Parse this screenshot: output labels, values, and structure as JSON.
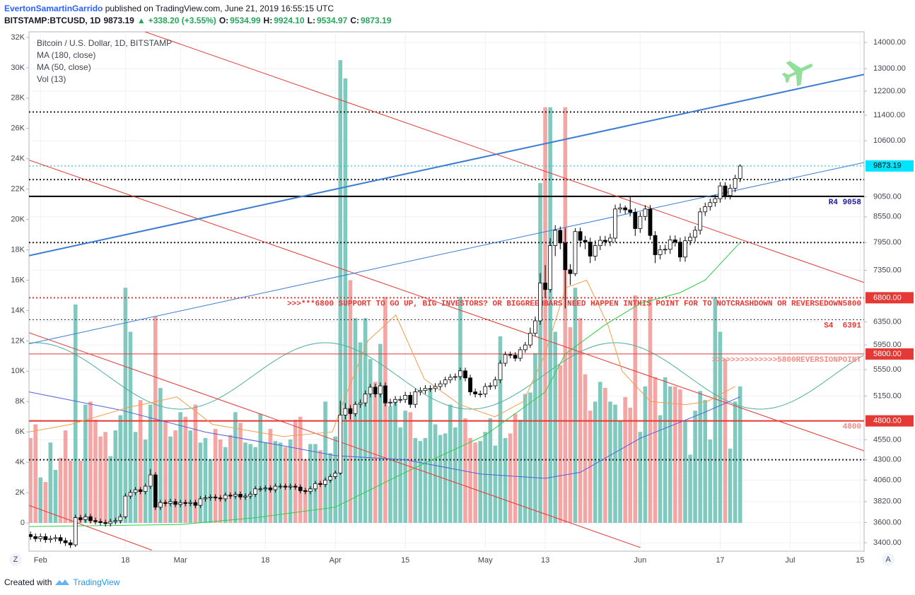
{
  "header": {
    "author": "EvertonSamartinGarrido",
    "published": " published on TradingView.com, June 21, 2019 16:55:15 UTC",
    "symbol": "BITSTAMP:BTCUSD, 1D",
    "last": "9873.19",
    "arrow": "▲",
    "change": "+338.20 (+3.55%)",
    "ohlc": [
      {
        "label": "O:",
        "value": "9534.99"
      },
      {
        "label": "H:",
        "value": "9924.10"
      },
      {
        "label": "L:",
        "value": "9534.97"
      },
      {
        "label": "C:",
        "value": "9873.19"
      }
    ]
  },
  "chart_data": {
    "type": "candlestick",
    "title": "Bitcoin / U.S. Dollar, 1D, BITSTAMP",
    "grid": true,
    "y2log": true,
    "up_color": "#ffffff",
    "down_color": "#000000",
    "volume_up_color": "#80c9bf",
    "volume_down_color": "#f4a6a4",
    "xlim": [
      29.7,
      196.8
    ],
    "xticks": [
      {
        "value": 32,
        "label": "Feb"
      },
      {
        "value": 49,
        "label": "18"
      },
      {
        "value": 60,
        "label": "Mar"
      },
      {
        "value": 77,
        "label": "18"
      },
      {
        "value": 91,
        "label": "Apr"
      },
      {
        "value": 105,
        "label": "15"
      },
      {
        "value": 121,
        "label": "May"
      },
      {
        "value": 133,
        "label": "13"
      },
      {
        "value": 152,
        "label": "Jun"
      },
      {
        "value": 168,
        "label": "17"
      },
      {
        "value": 182,
        "label": "Jul"
      },
      {
        "value": 196,
        "label": "15"
      }
    ],
    "ylim": [
      -1860,
      32370
    ],
    "yticks": [
      0,
      {
        "value": 2000,
        "label": "2K"
      },
      {
        "value": 4000,
        "label": "4K"
      },
      {
        "value": 6000,
        "label": "6K"
      },
      {
        "value": 8000,
        "label": "8K"
      },
      {
        "value": 10000,
        "label": "10K"
      },
      {
        "value": 12000,
        "label": "12K"
      },
      {
        "value": 14000,
        "label": "14K"
      },
      {
        "value": 16000,
        "label": "16K"
      },
      {
        "value": 18000,
        "label": "18K"
      },
      {
        "value": 20000,
        "label": "20K"
      },
      {
        "value": 22000,
        "label": "22K"
      },
      {
        "value": 24000,
        "label": "24K"
      },
      {
        "value": 26000,
        "label": "26K"
      },
      {
        "value": 28000,
        "label": "28K"
      },
      {
        "value": 30000,
        "label": "30K"
      },
      {
        "value": 32000,
        "label": "32K"
      }
    ],
    "y2lim": [
      3320,
      14430
    ],
    "y2ticks": [
      {
        "value": 14000,
        "label": "14000.00"
      },
      {
        "value": 13000,
        "label": "13000.00"
      },
      {
        "value": 12200,
        "label": "12200.00"
      },
      {
        "value": 11400,
        "label": "11400.00"
      },
      {
        "value": 10600,
        "label": "10600.00"
      },
      {
        "value": 9050,
        "label": "9050.00"
      },
      {
        "value": 8550,
        "label": "8550.00"
      },
      {
        "value": 7950,
        "label": "7950.00"
      },
      {
        "value": 7350,
        "label": "7350.00"
      },
      {
        "value": 6350,
        "label": "6350.00"
      },
      {
        "value": 5950,
        "label": "5950.00"
      },
      {
        "value": 5550,
        "label": "5550.00"
      },
      {
        "value": 5150,
        "label": "5150.00"
      },
      {
        "value": 4550,
        "label": "4550.00"
      },
      {
        "value": 4300,
        "label": "4300.00"
      },
      {
        "value": 4060,
        "label": "4060.00"
      },
      {
        "value": 3820,
        "label": "3820.00"
      },
      {
        "value": 3600,
        "label": "3600.00"
      },
      {
        "value": 3400,
        "label": "3400.00"
      }
    ],
    "x": [
      30,
      31,
      32,
      33,
      34,
      35,
      36,
      37,
      38,
      39,
      40,
      41,
      42,
      43,
      44,
      45,
      46,
      47,
      48,
      49,
      50,
      51,
      52,
      53,
      54,
      55,
      56,
      57,
      58,
      59,
      60,
      61,
      62,
      63,
      64,
      65,
      66,
      67,
      68,
      69,
      70,
      71,
      72,
      73,
      74,
      75,
      76,
      77,
      78,
      79,
      80,
      81,
      82,
      83,
      84,
      85,
      86,
      87,
      88,
      89,
      90,
      91,
      92,
      93,
      94,
      95,
      96,
      97,
      98,
      99,
      100,
      101,
      102,
      103,
      104,
      105,
      106,
      107,
      108,
      109,
      110,
      111,
      112,
      113,
      114,
      115,
      116,
      117,
      118,
      119,
      120,
      121,
      122,
      123,
      124,
      125,
      126,
      127,
      128,
      129,
      130,
      131,
      132,
      133,
      134,
      135,
      136,
      137,
      138,
      139,
      140,
      141,
      142,
      143,
      144,
      145,
      146,
      147,
      148,
      149,
      150,
      151,
      152,
      153,
      154,
      155,
      156,
      157,
      158,
      159,
      160,
      161,
      162,
      163,
      164,
      165,
      166,
      167,
      168,
      169,
      170,
      171,
      172
    ],
    "open": [
      3480,
      3460,
      3440,
      3460,
      3430,
      3440,
      3450,
      3420,
      3400,
      3380,
      3650,
      3630,
      3660,
      3620,
      3610,
      3600,
      3590,
      3610,
      3620,
      3660,
      3880,
      3920,
      3950,
      3930,
      3990,
      4120,
      3760,
      3810,
      3800,
      3820,
      3790,
      3810,
      3800,
      3810,
      3780,
      3850,
      3860,
      3870,
      3860,
      3850,
      3890,
      3880,
      3900,
      3870,
      3880,
      3900,
      3960,
      3960,
      3970,
      3950,
      3990,
      3990,
      3980,
      3990,
      3980,
      3940,
      3930,
      3960,
      4020,
      4010,
      4060,
      4100,
      4140,
      4880,
      4970,
      4900,
      5030,
      5050,
      5180,
      5280,
      5180,
      5300,
      5050,
      5060,
      5100,
      5100,
      5160,
      5030,
      5210,
      5230,
      5260,
      5260,
      5290,
      5330,
      5390,
      5430,
      5440,
      5530,
      5420,
      5210,
      5180,
      5180,
      5290,
      5300,
      5390,
      5650,
      5790,
      5780,
      5730,
      5870,
      5950,
      6150,
      6370,
      7090,
      6960,
      7880,
      8230,
      7940,
      7360,
      7280,
      8200,
      8000,
      7960,
      7650,
      7880,
      8000,
      7970,
      8050,
      8740,
      8770,
      8720,
      8660,
      8270,
      8560,
      8740,
      8110,
      7680,
      7790,
      7800,
      8010,
      7960,
      7630,
      7990,
      8070,
      8230,
      8670,
      8800,
      8900,
      9000,
      9330,
      9080,
      9270,
      9530
    ],
    "high": [
      3510,
      3490,
      3490,
      3490,
      3470,
      3480,
      3480,
      3450,
      3430,
      3680,
      3680,
      3690,
      3690,
      3650,
      3640,
      3630,
      3640,
      3650,
      3690,
      3910,
      3950,
      3980,
      3980,
      4020,
      4190,
      4150,
      3840,
      3840,
      3850,
      3850,
      3840,
      3840,
      3840,
      3840,
      3880,
      3890,
      3900,
      3900,
      3890,
      3920,
      3920,
      3930,
      3930,
      3910,
      3930,
      3990,
      3990,
      4000,
      4000,
      4020,
      4020,
      4020,
      4020,
      4020,
      4010,
      3970,
      3990,
      4050,
      4050,
      4090,
      4130,
      4170,
      5080,
      5050,
      5020,
      5070,
      5100,
      5230,
      5330,
      5330,
      5350,
      5350,
      5110,
      5150,
      5150,
      5210,
      5210,
      5260,
      5280,
      5310,
      5310,
      5340,
      5380,
      5440,
      5480,
      5490,
      5580,
      5580,
      5470,
      5260,
      5230,
      5340,
      5350,
      5440,
      5700,
      5840,
      5840,
      5830,
      5920,
      6000,
      6250,
      6450,
      7290,
      7460,
      8050,
      8350,
      8320,
      8280,
      7480,
      8280,
      8290,
      8100,
      8060,
      8000,
      8100,
      8100,
      8150,
      8850,
      8880,
      8830,
      9060,
      8760,
      8660,
      8840,
      8840,
      8210,
      7890,
      7900,
      8110,
      8110,
      8060,
      8090,
      8170,
      8330,
      8770,
      8900,
      9000,
      9100,
      9430,
      9430,
      9370,
      9630,
      9920
    ],
    "low": [
      3430,
      3410,
      3410,
      3400,
      3400,
      3410,
      3390,
      3370,
      3350,
      3360,
      3600,
      3600,
      3590,
      3580,
      3570,
      3560,
      3560,
      3580,
      3590,
      3640,
      3850,
      3890,
      3900,
      3900,
      3960,
      3730,
      3730,
      3770,
      3770,
      3760,
      3760,
      3770,
      3770,
      3750,
      3750,
      3820,
      3830,
      3830,
      3820,
      3820,
      3850,
      3850,
      3840,
      3840,
      3850,
      3870,
      3930,
      3930,
      3920,
      3920,
      3960,
      3950,
      3950,
      3950,
      3910,
      3900,
      3900,
      3930,
      3980,
      3980,
      4030,
      4070,
      4120,
      4820,
      4820,
      4860,
      4980,
      5000,
      5130,
      5130,
      5130,
      5000,
      5000,
      5010,
      5050,
      5050,
      4980,
      4980,
      5160,
      5180,
      5210,
      5210,
      5240,
      5280,
      5340,
      5380,
      5390,
      5370,
      5160,
      5130,
      5130,
      5130,
      5240,
      5250,
      5340,
      5600,
      5730,
      5680,
      5680,
      5820,
      5900,
      6100,
      6300,
      6800,
      6900,
      7650,
      7800,
      6600,
      7050,
      7230,
      7850,
      7800,
      7500,
      7550,
      7780,
      7870,
      7870,
      7950,
      8640,
      8620,
      8560,
      8100,
      8170,
      8460,
      8010,
      7500,
      7580,
      7690,
      7700,
      7860,
      7530,
      7530,
      7890,
      7970,
      8130,
      8570,
      8700,
      8800,
      8900,
      8980,
      8980,
      9170,
      9430
    ],
    "close": [
      3460,
      3440,
      3460,
      3430,
      3440,
      3450,
      3420,
      3400,
      3380,
      3650,
      3630,
      3660,
      3620,
      3610,
      3600,
      3590,
      3610,
      3620,
      3660,
      3880,
      3920,
      3950,
      3930,
      3990,
      4120,
      3760,
      3810,
      3800,
      3820,
      3790,
      3810,
      3800,
      3810,
      3780,
      3850,
      3860,
      3870,
      3860,
      3850,
      3890,
      3880,
      3900,
      3870,
      3880,
      3900,
      3960,
      3960,
      3970,
      3950,
      3990,
      3990,
      3980,
      3990,
      3980,
      3940,
      3930,
      3960,
      4020,
      4010,
      4060,
      4100,
      4140,
      4880,
      4970,
      4900,
      5030,
      5050,
      5180,
      5280,
      5180,
      5300,
      5050,
      5060,
      5100,
      5100,
      5160,
      5030,
      5210,
      5230,
      5260,
      5260,
      5290,
      5330,
      5390,
      5430,
      5440,
      5530,
      5420,
      5210,
      5180,
      5180,
      5290,
      5300,
      5390,
      5650,
      5790,
      5780,
      5730,
      5870,
      5950,
      6150,
      6370,
      7090,
      6960,
      7880,
      8230,
      7940,
      7360,
      7280,
      8200,
      8000,
      7960,
      7650,
      7880,
      8000,
      7970,
      8050,
      8740,
      8770,
      8720,
      8660,
      8270,
      8560,
      8740,
      8110,
      7680,
      7790,
      7800,
      8010,
      7960,
      7630,
      7990,
      8070,
      8230,
      8670,
      8800,
      8900,
      9000,
      9330,
      9080,
      9270,
      9530,
      9870
    ],
    "volume": [
      5600,
      6500,
      3000,
      2700,
      5300,
      3500,
      4300,
      6100,
      4100,
      14400,
      4100,
      7800,
      8000,
      6800,
      5700,
      6000,
      4400,
      6100,
      7100,
      15500,
      12600,
      6000,
      8100,
      5500,
      7800,
      13600,
      8900,
      6700,
      5700,
      6100,
      7300,
      7000,
      6100,
      7800,
      5300,
      5600,
      4200,
      6200,
      5500,
      5000,
      5800,
      7300,
      6600,
      5300,
      5200,
      5000,
      7200,
      5300,
      6200,
      5400,
      5300,
      5000,
      5500,
      6800,
      7000,
      4200,
      5200,
      5200,
      4800,
      8000,
      4600,
      5700,
      30500,
      29300,
      16000,
      13500,
      11900,
      13500,
      10800,
      9300,
      11800,
      14900,
      7700,
      8000,
      6300,
      7400,
      7300,
      5600,
      5400,
      5600,
      8800,
      6500,
      5800,
      5900,
      7800,
      6300,
      14900,
      6900,
      5600,
      5300,
      5400,
      6000,
      6900,
      5100,
      12300,
      5600,
      5900,
      7200,
      6800,
      8500,
      8600,
      11200,
      22400,
      27400,
      27400,
      12600,
      10400,
      27400,
      12900,
      15500,
      13500,
      9800,
      7400,
      8000,
      9300,
      8900,
      8000,
      7800,
      6700,
      8300,
      7600,
      15000,
      6000,
      9000,
      14900,
      9600,
      7100,
      9600,
      9000,
      9000,
      8800,
      6700,
      4500,
      7400,
      8700,
      8100,
      5500,
      14900,
      12600,
      10800,
      4900,
      8000,
      9000
    ],
    "series": [
      {
        "name": "MA (180, close)",
        "color": "#4f5fd6",
        "axis": "y2",
        "x": [
          29.7,
          48,
          65,
          80,
          91,
          105,
          120,
          133,
          140,
          152,
          165,
          172
        ],
        "values": [
          5210,
          4950,
          4650,
          4480,
          4350,
          4300,
          4130,
          4080,
          4150,
          4570,
          4920,
          5140
        ]
      },
      {
        "name": "MA (50, close)",
        "color": "#2ecc40",
        "axis": "y2",
        "x": [
          29.7,
          60,
          75,
          91,
          105,
          121,
          133,
          137,
          145,
          152,
          160,
          165,
          172
        ],
        "values": [
          3560,
          3580,
          3650,
          3760,
          4150,
          4610,
          5210,
          5800,
          6300,
          6690,
          6900,
          7150,
          7950
        ]
      },
      {
        "name": "Vol (13)",
        "color": "#f39c4a",
        "axis": "y",
        "x": [
          29.7,
          38.1,
          49.4,
          59.3,
          66.4,
          80.5,
          90.4,
          93.2,
          97.5,
          103.1,
          108.8,
          115.9,
          122.9,
          128.6,
          132.8,
          137.1,
          141.3,
          145.6,
          148.4,
          151.2,
          154.1,
          161.1,
          165.4,
          171.0
        ],
        "values": [
          6000,
          6500,
          7600,
          8300,
          6500,
          5700,
          6000,
          8500,
          12000,
          13700,
          9500,
          7800,
          7000,
          8000,
          11000,
          15500,
          16000,
          13000,
          10000,
          9000,
          8000,
          7800,
          8000,
          9000
        ]
      }
    ],
    "trendlines": [
      {
        "x": [
          52.9,
          196.8
        ],
        "values": [
          14430,
          7100
        ],
        "color": "#e53935",
        "width": 1
      },
      {
        "x": [
          29.7,
          196.8
        ],
        "values": [
          10040,
          4410
        ],
        "color": "#e53935",
        "width": 1
      },
      {
        "x": [
          29.7,
          152.0
        ],
        "values": [
          6160,
          3355
        ],
        "color": "#e53935",
        "width": 1
      },
      {
        "x": [
          29.7,
          54.3
        ],
        "values": [
          3780,
          3330
        ],
        "color": "#e53935",
        "width": 1
      },
      {
        "x": [
          29.7,
          196.8
        ],
        "values": [
          7660,
          12790
        ],
        "color": "#3a7bd5",
        "width": 2
      },
      {
        "x": [
          29.7,
          196.8
        ],
        "values": [
          5970,
          9970
        ],
        "color": "#3a7bd5",
        "width": 1
      }
    ],
    "levels": [
      {
        "value": 11500,
        "color": "#222222",
        "style": "dotted",
        "width": 2
      },
      {
        "value": 9873.19,
        "color": "#00bcd4",
        "style": "dotted",
        "width": 1
      },
      {
        "value": 9500,
        "color": "#222222",
        "style": "dotted",
        "width": 2
      },
      {
        "value": 9058,
        "color": "#000000",
        "style": "solid",
        "width": 2,
        "label": "R4 9058",
        "label_color": "#1a1aa6"
      },
      {
        "value": 7950,
        "color": "#222222",
        "style": "dotted",
        "width": 2
      },
      {
        "value": 6800,
        "color": "#e53935",
        "style": "dotted",
        "width": 2,
        "label": ">>>***6800 SUPPORT TO GO UP, BIG INVESTORS? OR BIGGREENBARS NEED HAPPEN INTHIS POINT FOR TO NOTCRASHDOWN OR REVERSEDOWN5800",
        "label_color": "#e53935"
      },
      {
        "value": 6391,
        "color": "#222222",
        "style": "dotted",
        "width": 1,
        "label": "S4  6391",
        "label_color": "#e53935"
      },
      {
        "value": 5800,
        "color": "#e53935",
        "style": "solid",
        "width": 1,
        "label": ">>>>>>>>>>>>>>5800REVERSIONPOINT",
        "label_color": "#f28b82"
      },
      {
        "value": 4800,
        "color": "#e53935",
        "style": "solid",
        "width": 2,
        "label": "4800",
        "label_color": "#f28b82"
      },
      {
        "value": 4300,
        "color": "#222222",
        "style": "dotted",
        "width": 2
      }
    ],
    "price_labels": [
      {
        "value": 9873.19,
        "label": "9873.19",
        "color": "#00e5ff",
        "text_color": "#000000"
      },
      {
        "value": 6800,
        "label": "6800.00",
        "color": "#e53935",
        "text_color": "#ffffff"
      },
      {
        "value": 5800,
        "label": "5800.00",
        "color": "#e53935",
        "text_color": "#ffffff"
      },
      {
        "value": 4800,
        "label": "4800.00",
        "color": "#e53935",
        "text_color": "#ffffff"
      }
    ],
    "corner_left": "Z",
    "corner_right": "A"
  },
  "footer": {
    "text": "Created with",
    "brand": "TradingView"
  }
}
